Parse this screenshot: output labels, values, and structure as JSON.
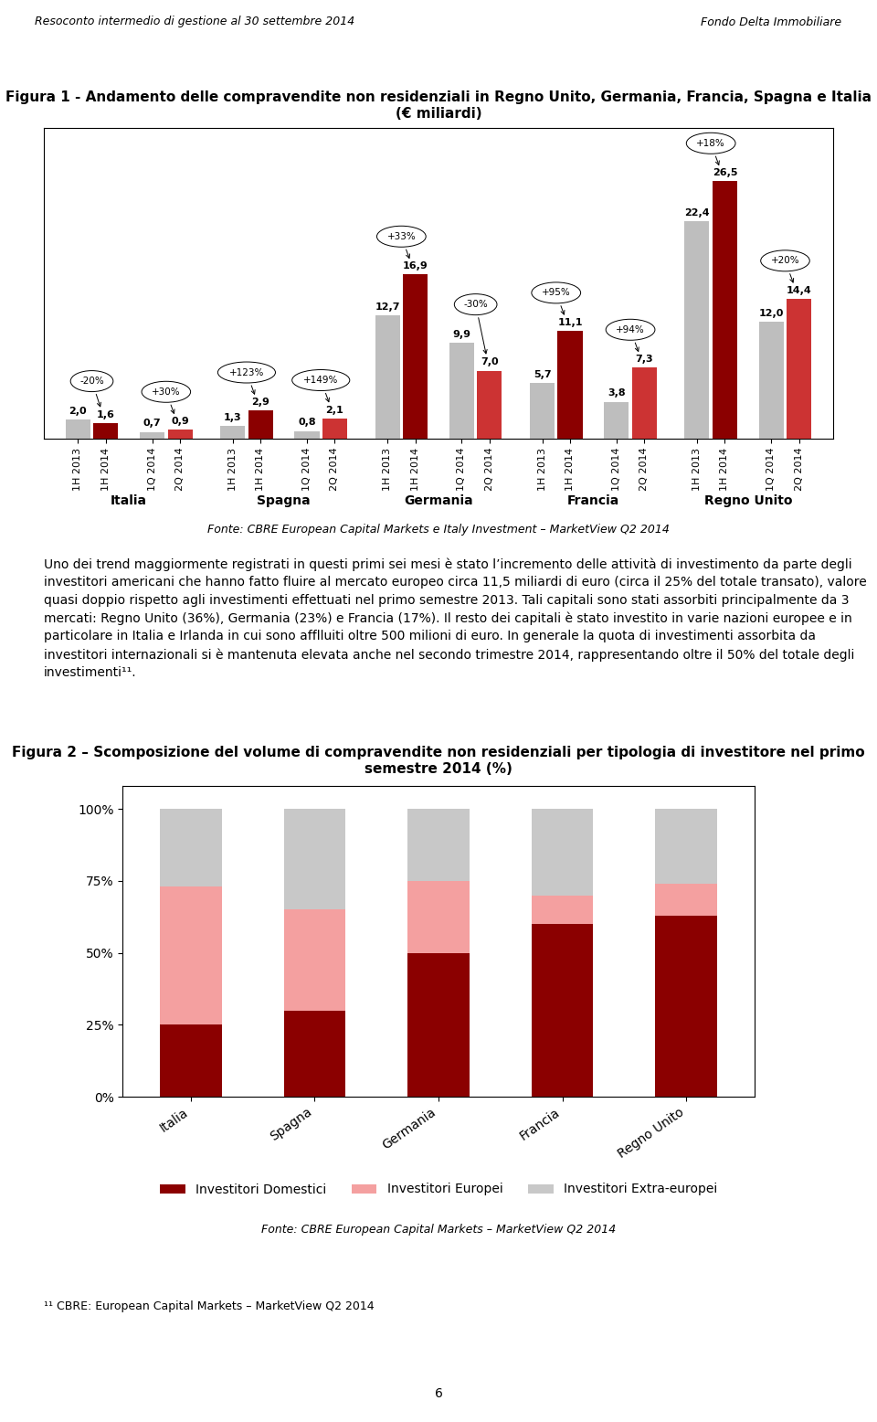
{
  "header": [
    "Resoconto intermedio di gestione al 30 settembre 2014",
    "Fondo Delta Immobiliare"
  ],
  "chart_data": [
    {
      "type": "bar",
      "title": "Figura 1 - Andamento delle compravendite non residenziali in Regno Unito, Germania, Francia, Spagna e Italia (€ miliardi)",
      "categories": [
        "Italia",
        "Spagna",
        "Germania",
        "Francia",
        "Regno Unito"
      ],
      "series": [
        {
          "name": "1H 2013",
          "color": "#BEBEBE",
          "values": [
            2.0,
            1.3,
            12.7,
            5.7,
            22.4
          ],
          "value_labels": [
            "2,0",
            "1,3",
            "12,7",
            "5,7",
            "22,4"
          ]
        },
        {
          "name": "1H 2014",
          "color": "#8B0000",
          "values": [
            1.6,
            2.9,
            16.9,
            11.1,
            26.5
          ],
          "value_labels": [
            "1,6",
            "2,9",
            "16,9",
            "11,1",
            "26,5"
          ]
        },
        {
          "name": "1Q 2014",
          "color": "#BEBEBE",
          "values": [
            0.7,
            0.8,
            9.9,
            3.8,
            12.0
          ],
          "value_labels": [
            "0,7",
            "0,8",
            "9,9",
            "3,8",
            "12,0"
          ]
        },
        {
          "name": "2Q 2014",
          "color": "#CC3333",
          "values": [
            0.9,
            2.1,
            7.0,
            7.3,
            14.4
          ],
          "value_labels": [
            "0,9",
            "2,1",
            "7,0",
            "7,3",
            "14,4"
          ]
        }
      ],
      "annotations": [
        {
          "category": "Italia",
          "series": [
            "1H 2013",
            "1H 2014"
          ],
          "text": "-20%"
        },
        {
          "category": "Italia",
          "series": [
            "1Q 2014",
            "2Q 2014"
          ],
          "text": "+30%"
        },
        {
          "category": "Spagna",
          "series": [
            "1H 2013",
            "1H 2014"
          ],
          "text": "+123%"
        },
        {
          "category": "Spagna",
          "series": [
            "1Q 2014",
            "2Q 2014"
          ],
          "text": "+149%"
        },
        {
          "category": "Germania",
          "series": [
            "1H 2013",
            "1H 2014"
          ],
          "text": "+33%"
        },
        {
          "category": "Germania",
          "series": [
            "1Q 2014",
            "2Q 2014"
          ],
          "text": "-30%"
        },
        {
          "category": "Francia",
          "series": [
            "1H 2013",
            "1H 2014"
          ],
          "text": "+95%"
        },
        {
          "category": "Francia",
          "series": [
            "1Q 2014",
            "2Q 2014"
          ],
          "text": "+94%"
        },
        {
          "category": "Regno Unito",
          "series": [
            "1H 2013",
            "1H 2014"
          ],
          "text": "+18%"
        },
        {
          "category": "Regno Unito",
          "series": [
            "1Q 2014",
            "2Q 2014"
          ],
          "text": "+20%"
        }
      ],
      "ylim": [
        0,
        32
      ],
      "data_labels": true,
      "tick_labels": "x",
      "source": "Fonte: CBRE European Capital Markets e Italy Investment – MarketView Q2 2014"
    },
    {
      "type": "bar",
      "stacked": true,
      "title": "Figura 2 – Scomposizione del volume di compravendite non residenziali per tipologia di investitore nel primo semestre 2014 (%)",
      "categories": [
        "Italia",
        "Spagna",
        "Germania",
        "Francia",
        "Regno Unito"
      ],
      "series": [
        {
          "name": "Investitori Domestici",
          "color": "#8B0000",
          "values": [
            25,
            30,
            50,
            60,
            63
          ]
        },
        {
          "name": "Investitori Europei",
          "color": "#F4A0A0",
          "values": [
            48,
            35,
            25,
            10,
            11
          ]
        },
        {
          "name": "Investitori Extra-europei",
          "color": "#C8C8C8",
          "values": [
            27,
            35,
            25,
            30,
            26
          ]
        }
      ],
      "ylim": [
        0,
        108
      ],
      "yticks": [
        {
          "value": 0,
          "label": "0%"
        },
        {
          "value": 25,
          "label": "25%"
        },
        {
          "value": 50,
          "label": "50%"
        },
        {
          "value": 75,
          "label": "75%"
        },
        {
          "value": 100,
          "label": "100%"
        }
      ],
      "legend": "upper center",
      "source": "Fonte: CBRE European Capital Markets – MarketView Q2 2014"
    }
  ],
  "text": "Uno dei trend maggiormente registrati in questi primi sei mesi è stato l’incremento delle attività di investimento da parte degli investitori americani che hanno fatto fluire al mercato europeo circa 11,5 miliardi di euro (circa il 25% del totale transato), valore quasi doppio rispetto agli investimenti effettuati nel primo semestre 2013. Tali capitali sono stati assorbiti principalmente da 3 mercati: Regno Unito (36%), Germania (23%) e Francia (17%). Il resto dei capitali è stato investito in varie nazioni europee e in particolare in Italia e Irlanda in cui sono afflluiti oltre 500 milioni di euro. In generale la quota di investimenti assorbita da investitori internazionali si è mantenuta elevata anche nel secondo trimestre 2014, rappresentando oltre il 50% del totale degli investimenti¹¹.",
  "footnote": "¹¹ CBRE: European Capital Markets – MarketView Q2 2014",
  "page_number": "6"
}
